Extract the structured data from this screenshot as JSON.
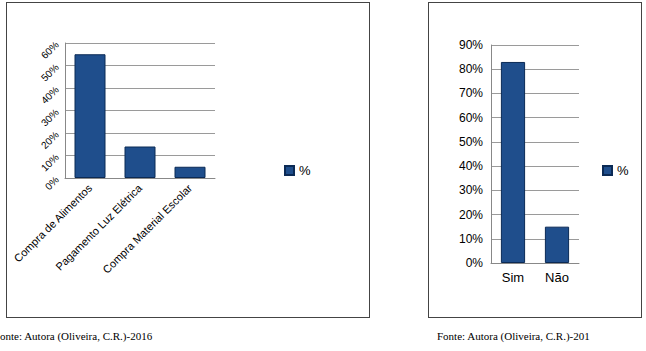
{
  "chart_data": [
    {
      "type": "bar",
      "categories": [
        "Compra de Alimentos",
        "Pagamento Luz Elétrica",
        "Compra Material Escolar"
      ],
      "series": [
        {
          "name": "%",
          "color": "#1f4e8c",
          "values": [
            55,
            14,
            5
          ]
        }
      ],
      "ylim": [
        0,
        60
      ],
      "yticks": [
        {
          "value": 0,
          "label": "0%"
        },
        {
          "value": 10,
          "label": "10%"
        },
        {
          "value": 20,
          "label": "20%"
        },
        {
          "value": 30,
          "label": "30%"
        },
        {
          "value": 40,
          "label": "40%"
        },
        {
          "value": 50,
          "label": "50%"
        },
        {
          "value": 60,
          "label": "60%"
        }
      ],
      "grid": true,
      "legend": "right",
      "annotations": [
        "onte: Autora (Oliveira, C.R.)-2016"
      ]
    },
    {
      "type": "bar",
      "categories": [
        "Sim",
        "Não"
      ],
      "series": [
        {
          "name": "%",
          "color": "#1f4e8c",
          "values": [
            83,
            15
          ]
        }
      ],
      "ylim": [
        0,
        90
      ],
      "yticks": [
        {
          "value": 0,
          "label": "0%"
        },
        {
          "value": 10,
          "label": "10%"
        },
        {
          "value": 20,
          "label": "20%"
        },
        {
          "value": 30,
          "label": "30%"
        },
        {
          "value": 40,
          "label": "40%"
        },
        {
          "value": 50,
          "label": "50%"
        },
        {
          "value": 60,
          "label": "60%"
        },
        {
          "value": 70,
          "label": "70%"
        },
        {
          "value": 80,
          "label": "80%"
        },
        {
          "value": 90,
          "label": "90%"
        }
      ],
      "grid": true,
      "legend": "right",
      "annotations": [
        "Fonte: Autora (Oliveira, C.R.)-201"
      ]
    }
  ]
}
